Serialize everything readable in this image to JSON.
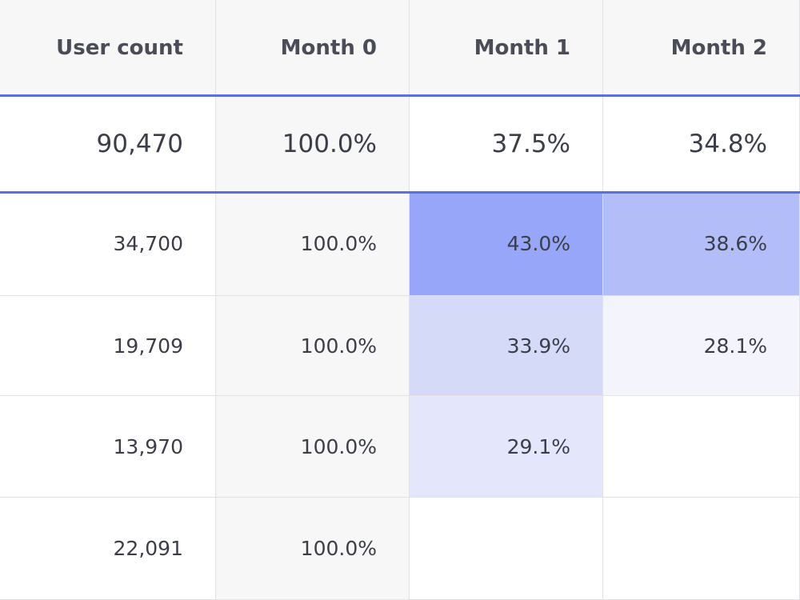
{
  "table": {
    "header": [
      "User count",
      "Month 0",
      "Month 1",
      "Month 2"
    ],
    "summary": [
      "90,470",
      "100.0%",
      "37.5%",
      "34.8%"
    ],
    "rows": [
      {
        "cells": [
          "34,700",
          "100.0%",
          "43.0%",
          "38.6%"
        ],
        "heat_colors": [
          "#97a6f8",
          "#b3bef9"
        ]
      },
      {
        "cells": [
          "19,709",
          "100.0%",
          "33.9%",
          "28.1%"
        ],
        "heat_colors": [
          "#d5daf9",
          "#f3f4fc"
        ]
      },
      {
        "cells": [
          "13,970",
          "100.0%",
          "29.1%"
        ],
        "heat_colors": [
          "#e4e7fb"
        ]
      },
      {
        "cells": [
          "22,091",
          "100.0%"
        ],
        "heat_colors": []
      }
    ]
  }
}
